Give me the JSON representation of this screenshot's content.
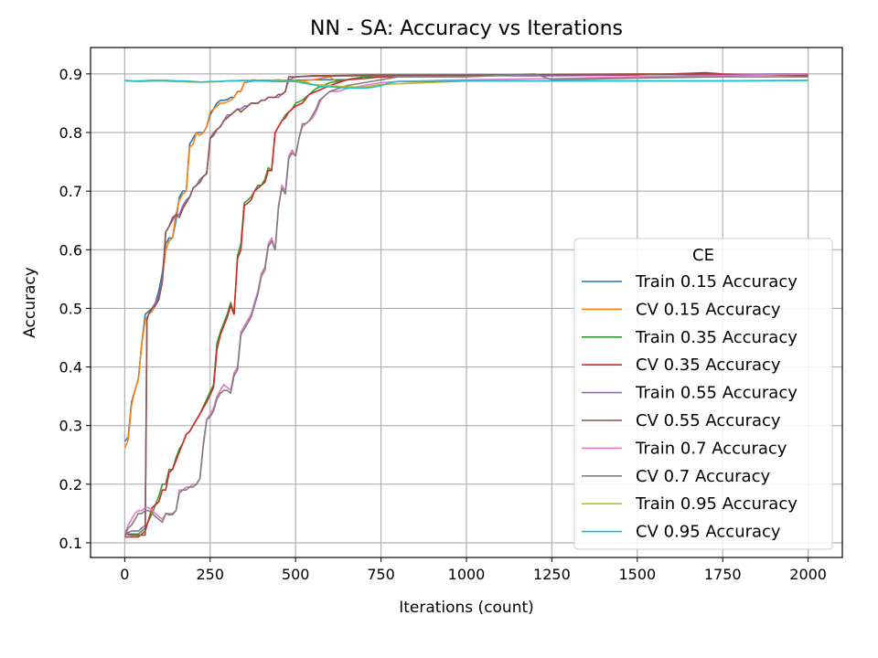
{
  "chart_data": {
    "type": "line",
    "title": "NN - SA: Accuracy vs Iterations",
    "xlabel": "Iterations (count)",
    "ylabel": "Accuracy",
    "xlim": [
      -100,
      2100
    ],
    "ylim": [
      0.075,
      0.945
    ],
    "xticks": [
      0,
      250,
      500,
      750,
      1000,
      1250,
      1500,
      1750,
      2000
    ],
    "yticks": [
      0.1,
      0.2,
      0.3,
      0.4,
      0.5,
      0.6,
      0.7,
      0.8,
      0.9
    ],
    "grid": true,
    "legend": {
      "title": "CE",
      "placement": "center-right"
    },
    "series": [
      {
        "name": "Train 0.15 Accuracy",
        "color": "#1f77b4",
        "x": [
          0,
          10,
          20,
          30,
          40,
          50,
          60,
          70,
          80,
          90,
          100,
          110,
          120,
          130,
          140,
          150,
          160,
          170,
          180,
          190,
          200,
          210,
          220,
          230,
          240,
          250,
          260,
          270,
          280,
          290,
          300,
          310,
          320,
          330,
          340,
          350,
          375,
          400,
          425,
          450,
          475,
          500,
          550,
          600,
          650,
          700,
          750,
          1000,
          1250,
          1500,
          1750,
          2000
        ],
        "values": [
          0.273,
          0.28,
          0.34,
          0.36,
          0.38,
          0.44,
          0.49,
          0.495,
          0.5,
          0.51,
          0.53,
          0.56,
          0.61,
          0.62,
          0.62,
          0.65,
          0.69,
          0.7,
          0.7,
          0.78,
          0.79,
          0.8,
          0.8,
          0.8,
          0.81,
          0.83,
          0.84,
          0.85,
          0.855,
          0.855,
          0.856,
          0.86,
          0.86,
          0.87,
          0.87,
          0.885,
          0.888,
          0.889,
          0.889,
          0.889,
          0.889,
          0.889,
          0.89,
          0.89,
          0.89,
          0.895,
          0.897,
          0.898,
          0.898,
          0.899,
          0.899,
          0.9
        ]
      },
      {
        "name": "CV 0.15 Accuracy",
        "color": "#ff7f0e",
        "x": [
          0,
          10,
          20,
          30,
          40,
          50,
          60,
          70,
          80,
          90,
          100,
          110,
          120,
          130,
          140,
          150,
          160,
          170,
          180,
          190,
          200,
          210,
          220,
          230,
          240,
          250,
          260,
          270,
          280,
          290,
          300,
          310,
          320,
          330,
          340,
          350,
          375,
          400,
          425,
          450,
          475,
          500,
          550,
          600,
          625,
          650,
          700,
          750,
          1000,
          1250,
          1500,
          1750,
          2000
        ],
        "values": [
          0.262,
          0.275,
          0.335,
          0.36,
          0.38,
          0.44,
          0.48,
          0.49,
          0.495,
          0.505,
          0.52,
          0.55,
          0.6,
          0.615,
          0.62,
          0.66,
          0.685,
          0.695,
          0.7,
          0.775,
          0.78,
          0.8,
          0.795,
          0.8,
          0.81,
          0.835,
          0.84,
          0.845,
          0.85,
          0.85,
          0.852,
          0.855,
          0.86,
          0.87,
          0.87,
          0.885,
          0.89,
          0.888,
          0.889,
          0.89,
          0.888,
          0.887,
          0.89,
          0.895,
          0.885,
          0.89,
          0.895,
          0.898,
          0.898,
          0.898,
          0.9,
          0.899,
          0.899
        ]
      },
      {
        "name": "Train 0.35 Accuracy",
        "color": "#2ca02c",
        "x": [
          0,
          20,
          40,
          60,
          80,
          100,
          110,
          120,
          130,
          140,
          150,
          160,
          170,
          180,
          190,
          200,
          220,
          240,
          260,
          270,
          280,
          290,
          300,
          310,
          320,
          330,
          340,
          350,
          360,
          370,
          380,
          390,
          400,
          410,
          420,
          430,
          440,
          450,
          460,
          470,
          480,
          490,
          500,
          520,
          540,
          560,
          580,
          600,
          650,
          700,
          750,
          1000,
          1250,
          1500,
          1750,
          2000
        ],
        "values": [
          0.115,
          0.115,
          0.115,
          0.125,
          0.15,
          0.18,
          0.2,
          0.2,
          0.225,
          0.225,
          0.245,
          0.26,
          0.27,
          0.285,
          0.29,
          0.3,
          0.32,
          0.345,
          0.37,
          0.44,
          0.46,
          0.475,
          0.49,
          0.51,
          0.49,
          0.59,
          0.61,
          0.68,
          0.685,
          0.69,
          0.7,
          0.71,
          0.71,
          0.72,
          0.74,
          0.735,
          0.8,
          0.81,
          0.82,
          0.83,
          0.835,
          0.84,
          0.85,
          0.855,
          0.865,
          0.875,
          0.88,
          0.885,
          0.89,
          0.895,
          0.895,
          0.897,
          0.898,
          0.899,
          0.899,
          0.9
        ]
      },
      {
        "name": "CV 0.35 Accuracy",
        "color": "#d62728",
        "x": [
          0,
          20,
          40,
          60,
          80,
          100,
          110,
          120,
          130,
          140,
          150,
          160,
          170,
          180,
          190,
          200,
          220,
          240,
          260,
          270,
          280,
          290,
          300,
          310,
          320,
          330,
          340,
          350,
          360,
          370,
          380,
          390,
          400,
          410,
          420,
          430,
          440,
          450,
          460,
          470,
          480,
          490,
          500,
          520,
          540,
          560,
          580,
          600,
          650,
          700,
          750,
          1000,
          1250,
          1500,
          1700,
          1750,
          2000
        ],
        "values": [
          0.11,
          0.11,
          0.11,
          0.12,
          0.16,
          0.17,
          0.19,
          0.19,
          0.22,
          0.225,
          0.24,
          0.255,
          0.27,
          0.285,
          0.29,
          0.3,
          0.32,
          0.34,
          0.365,
          0.43,
          0.455,
          0.47,
          0.485,
          0.505,
          0.49,
          0.585,
          0.6,
          0.675,
          0.68,
          0.685,
          0.7,
          0.705,
          0.71,
          0.715,
          0.735,
          0.735,
          0.8,
          0.81,
          0.82,
          0.825,
          0.835,
          0.84,
          0.845,
          0.85,
          0.865,
          0.87,
          0.875,
          0.88,
          0.89,
          0.892,
          0.895,
          0.897,
          0.897,
          0.898,
          0.902,
          0.9,
          0.897
        ]
      },
      {
        "name": "Train 0.55 Accuracy",
        "color": "#9467bd",
        "x": [
          0,
          20,
          40,
          50,
          60,
          65,
          70,
          80,
          90,
          100,
          110,
          120,
          130,
          140,
          150,
          160,
          170,
          180,
          190,
          200,
          210,
          220,
          230,
          240,
          250,
          260,
          270,
          280,
          290,
          300,
          310,
          320,
          330,
          340,
          350,
          360,
          370,
          380,
          390,
          400,
          410,
          420,
          430,
          440,
          450,
          460,
          470,
          480,
          500,
          550,
          600,
          700,
          1000,
          1250,
          1500,
          1750,
          2000
        ],
        "values": [
          0.115,
          0.12,
          0.12,
          0.125,
          0.13,
          0.48,
          0.49,
          0.5,
          0.51,
          0.52,
          0.55,
          0.63,
          0.64,
          0.65,
          0.66,
          0.66,
          0.675,
          0.685,
          0.69,
          0.705,
          0.71,
          0.72,
          0.725,
          0.73,
          0.79,
          0.8,
          0.805,
          0.81,
          0.82,
          0.83,
          0.83,
          0.835,
          0.84,
          0.84,
          0.845,
          0.845,
          0.85,
          0.85,
          0.85,
          0.855,
          0.855,
          0.86,
          0.86,
          0.86,
          0.86,
          0.865,
          0.87,
          0.89,
          0.895,
          0.896,
          0.896,
          0.897,
          0.897,
          0.898,
          0.899,
          0.899,
          0.9
        ]
      },
      {
        "name": "CV 0.55 Accuracy",
        "color": "#8c564b",
        "x": [
          0,
          20,
          40,
          50,
          60,
          65,
          70,
          80,
          90,
          100,
          110,
          120,
          130,
          140,
          150,
          160,
          170,
          180,
          190,
          200,
          210,
          220,
          230,
          240,
          250,
          260,
          270,
          280,
          290,
          300,
          310,
          320,
          330,
          340,
          350,
          360,
          370,
          380,
          390,
          400,
          410,
          420,
          430,
          440,
          450,
          460,
          470,
          480,
          500,
          550,
          600,
          700,
          1000,
          1250,
          1500,
          1750,
          2000
        ],
        "values": [
          0.115,
          0.113,
          0.113,
          0.113,
          0.113,
          0.48,
          0.49,
          0.5,
          0.505,
          0.515,
          0.545,
          0.63,
          0.64,
          0.655,
          0.66,
          0.655,
          0.67,
          0.68,
          0.69,
          0.705,
          0.71,
          0.715,
          0.725,
          0.73,
          0.79,
          0.795,
          0.805,
          0.81,
          0.82,
          0.825,
          0.83,
          0.835,
          0.84,
          0.835,
          0.84,
          0.845,
          0.85,
          0.85,
          0.85,
          0.855,
          0.855,
          0.86,
          0.86,
          0.86,
          0.865,
          0.865,
          0.87,
          0.895,
          0.895,
          0.897,
          0.897,
          0.898,
          0.898,
          0.899,
          0.9,
          0.899,
          0.898
        ]
      },
      {
        "name": "Train 0.7 Accuracy",
        "color": "#e377c2",
        "x": [
          0,
          10,
          20,
          30,
          40,
          50,
          60,
          70,
          80,
          90,
          100,
          110,
          120,
          130,
          140,
          150,
          160,
          170,
          180,
          190,
          200,
          210,
          220,
          230,
          240,
          250,
          260,
          270,
          280,
          290,
          300,
          310,
          320,
          330,
          340,
          350,
          360,
          370,
          380,
          390,
          400,
          410,
          420,
          430,
          440,
          450,
          460,
          470,
          480,
          490,
          500,
          510,
          520,
          530,
          540,
          550,
          560,
          570,
          580,
          590,
          600,
          625,
          650,
          700,
          750,
          800,
          1000,
          1250,
          1500,
          1750,
          2000
        ],
        "values": [
          0.115,
          0.13,
          0.14,
          0.15,
          0.155,
          0.155,
          0.16,
          0.16,
          0.155,
          0.15,
          0.145,
          0.14,
          0.15,
          0.15,
          0.15,
          0.155,
          0.19,
          0.19,
          0.195,
          0.195,
          0.2,
          0.2,
          0.21,
          0.27,
          0.31,
          0.32,
          0.33,
          0.35,
          0.36,
          0.37,
          0.365,
          0.36,
          0.39,
          0.4,
          0.46,
          0.47,
          0.48,
          0.49,
          0.51,
          0.53,
          0.56,
          0.57,
          0.61,
          0.62,
          0.6,
          0.67,
          0.71,
          0.7,
          0.76,
          0.77,
          0.76,
          0.79,
          0.81,
          0.815,
          0.82,
          0.825,
          0.835,
          0.85,
          0.86,
          0.865,
          0.87,
          0.87,
          0.875,
          0.88,
          0.885,
          0.887,
          0.89,
          0.892,
          0.895,
          0.897,
          0.9
        ]
      },
      {
        "name": "CV 0.7 Accuracy",
        "color": "#7f7f7f",
        "x": [
          0,
          10,
          20,
          30,
          40,
          50,
          60,
          70,
          80,
          90,
          100,
          110,
          120,
          130,
          140,
          150,
          160,
          170,
          180,
          190,
          200,
          210,
          220,
          230,
          240,
          250,
          260,
          270,
          280,
          290,
          300,
          310,
          320,
          330,
          340,
          350,
          360,
          370,
          380,
          390,
          400,
          410,
          420,
          430,
          440,
          450,
          460,
          470,
          480,
          490,
          500,
          510,
          520,
          530,
          540,
          550,
          560,
          570,
          580,
          590,
          600,
          625,
          650,
          700,
          750,
          800,
          1000,
          1200,
          1250,
          1500,
          1750,
          2000
        ],
        "values": [
          0.11,
          0.125,
          0.13,
          0.14,
          0.15,
          0.15,
          0.155,
          0.155,
          0.15,
          0.145,
          0.14,
          0.135,
          0.15,
          0.148,
          0.148,
          0.155,
          0.185,
          0.19,
          0.19,
          0.195,
          0.195,
          0.2,
          0.21,
          0.265,
          0.31,
          0.315,
          0.325,
          0.345,
          0.355,
          0.36,
          0.36,
          0.355,
          0.385,
          0.395,
          0.455,
          0.465,
          0.475,
          0.485,
          0.505,
          0.525,
          0.555,
          0.565,
          0.605,
          0.615,
          0.6,
          0.675,
          0.705,
          0.695,
          0.755,
          0.765,
          0.76,
          0.79,
          0.815,
          0.815,
          0.82,
          0.83,
          0.84,
          0.855,
          0.86,
          0.865,
          0.87,
          0.875,
          0.88,
          0.885,
          0.89,
          0.895,
          0.895,
          0.9,
          0.89,
          0.893,
          0.895,
          0.895
        ]
      },
      {
        "name": "Train 0.95 Accuracy",
        "color": "#bcbd22",
        "x": [
          0,
          50,
          100,
          150,
          200,
          250,
          300,
          400,
          500,
          530,
          550,
          600,
          650,
          700,
          750,
          1000,
          1250,
          1500,
          1750,
          2000
        ],
        "values": [
          0.888,
          0.887,
          0.888,
          0.887,
          0.886,
          0.886,
          0.888,
          0.888,
          0.888,
          0.886,
          0.882,
          0.88,
          0.878,
          0.877,
          0.882,
          0.888,
          0.888,
          0.888,
          0.888,
          0.889
        ]
      },
      {
        "name": "CV 0.95 Accuracy",
        "color": "#17becf",
        "x": [
          0,
          25,
          50,
          75,
          100,
          125,
          150,
          175,
          200,
          225,
          250,
          275,
          300,
          350,
          400,
          450,
          500,
          525,
          550,
          575,
          600,
          625,
          650,
          675,
          700,
          725,
          750,
          775,
          800,
          900,
          1000,
          1250,
          1500,
          1750,
          2000
        ],
        "values": [
          0.889,
          0.888,
          0.888,
          0.889,
          0.889,
          0.889,
          0.888,
          0.888,
          0.887,
          0.886,
          0.887,
          0.887,
          0.888,
          0.889,
          0.888,
          0.887,
          0.887,
          0.884,
          0.882,
          0.878,
          0.878,
          0.877,
          0.876,
          0.876,
          0.876,
          0.877,
          0.88,
          0.885,
          0.887,
          0.887,
          0.888,
          0.888,
          0.888,
          0.888,
          0.889
        ]
      }
    ]
  }
}
